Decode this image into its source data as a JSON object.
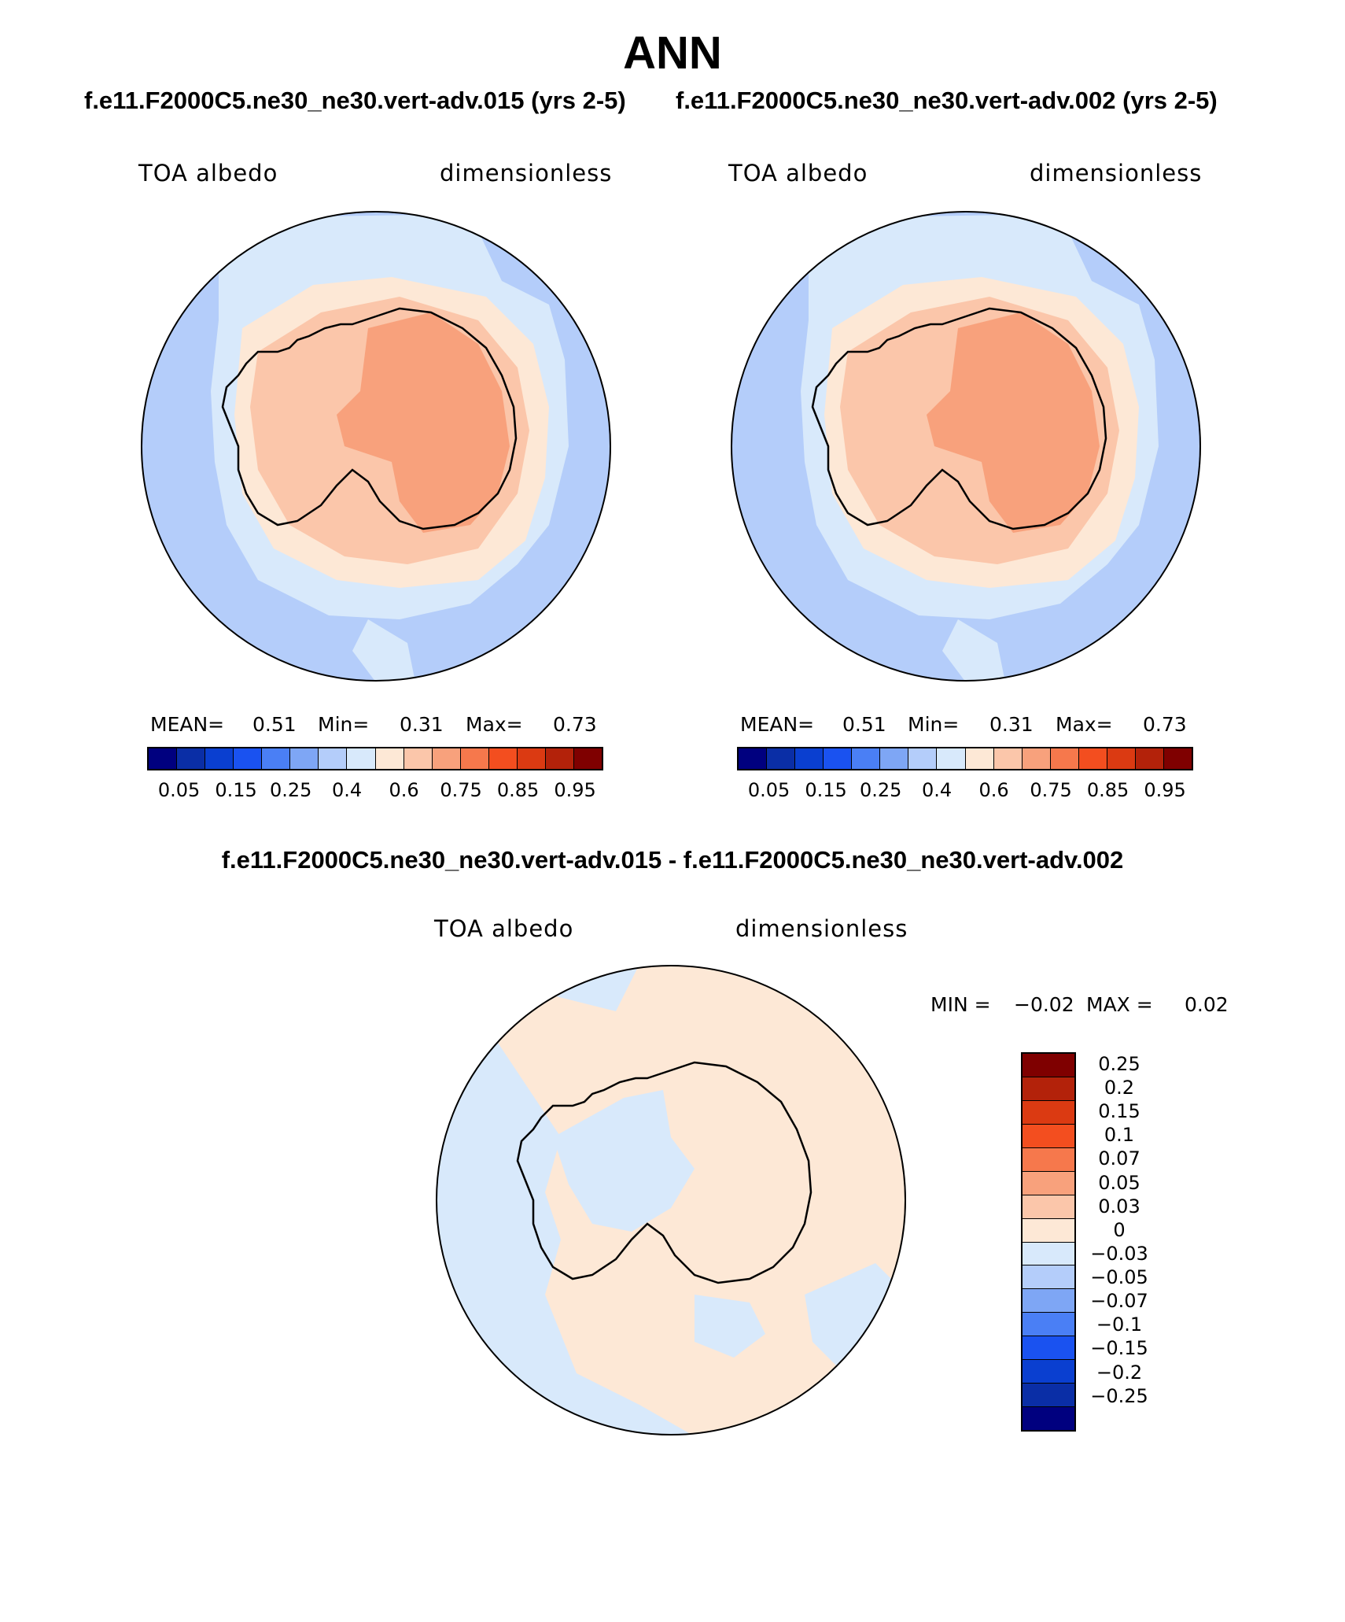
{
  "title": "ANN",
  "subtitle_left": "f.e11.F2000C5.ne30_ne30.vert-adv.015 (yrs 2-5)",
  "subtitle_right": "f.e11.F2000C5.ne30_ne30.vert-adv.002 (yrs 2-5)",
  "diff_title": "f.e11.F2000C5.ne30_ne30.vert-adv.015 - f.e11.F2000C5.ne30_ne30.vert-adv.002",
  "panels": [
    {
      "variable": "TOA albedo",
      "units": "dimensionless",
      "stats": {
        "mean_label": "MEAN=",
        "mean": "0.51",
        "min_label": "Min=",
        "min": "0.31",
        "max_label": "Max=",
        "max": "0.73"
      }
    },
    {
      "variable": "TOA albedo",
      "units": "dimensionless",
      "stats": {
        "mean_label": "MEAN=",
        "mean": "0.51",
        "min_label": "Min=",
        "min": "0.31",
        "max_label": "Max=",
        "max": "0.73"
      }
    }
  ],
  "diff_panel": {
    "variable": "TOA albedo",
    "units": "dimensionless",
    "min_label": "MIN =",
    "min": "−0.02",
    "max_label": "MAX =",
    "max": "0.02"
  },
  "colorbar_abs": {
    "colors": [
      "#00007f",
      "#0a2ea6",
      "#0a3fd0",
      "#1a52f0",
      "#4a7ff5",
      "#7ea6f5",
      "#b4cdfa",
      "#d8e9fb",
      "#fde8d6",
      "#fbc6aa",
      "#f8a17c",
      "#f6784c",
      "#f34e1f",
      "#db3a12",
      "#b3220a",
      "#7f0000"
    ],
    "tick_labels": [
      "0.05",
      "0.15",
      "0.25",
      "0.4",
      "0.6",
      "0.75",
      "0.85",
      "0.95"
    ]
  },
  "colorbar_diff": {
    "colors_top_to_bottom": [
      "#7f0000",
      "#b3220a",
      "#db3a12",
      "#f34e1f",
      "#f6784c",
      "#f8a17c",
      "#fbc6aa",
      "#fde8d6",
      "#d8e9fb",
      "#b4cdfa",
      "#7ea6f5",
      "#4a7ff5",
      "#1a52f0",
      "#0a3fd0",
      "#0a2ea6",
      "#00007f"
    ],
    "tick_labels_top_to_bottom": [
      "0.25",
      "0.2",
      "0.15",
      "0.1",
      "0.07",
      "0.05",
      "0.03",
      "0",
      "−0.03",
      "−0.05",
      "−0.07",
      "−0.1",
      "−0.15",
      "−0.2",
      "−0.25"
    ]
  }
}
